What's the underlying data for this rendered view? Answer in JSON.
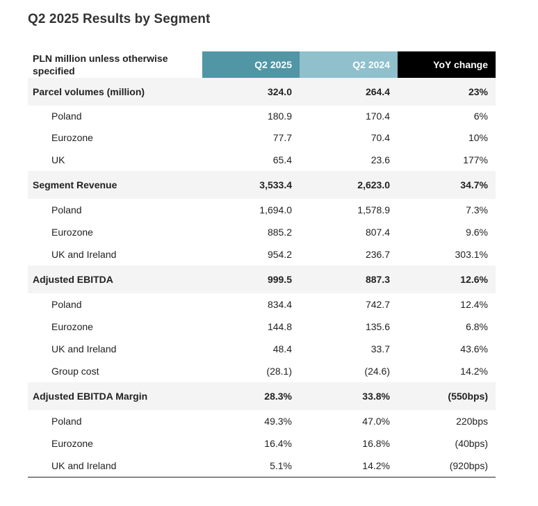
{
  "title": "Q2 2025 Results by Segment",
  "table": {
    "header": {
      "label": "PLN million unless otherwise specified",
      "q2_2025": "Q2 2025",
      "q2_2024": "Q2 2024",
      "yoy": "YoY change"
    },
    "colors": {
      "q2_2025_header": "#5096a5",
      "q2_2024_header": "#8fc0cc",
      "yoy_header": "#000000",
      "group_row_bg": "#f4f4f4"
    },
    "groups": [
      {
        "label": "Parcel volumes (million)",
        "q2_2025": "324.0",
        "q2_2024": "264.4",
        "yoy": "23%",
        "rows": [
          {
            "label": "Poland",
            "q2_2025": "180.9",
            "q2_2024": "170.4",
            "yoy": "6%"
          },
          {
            "label": "Eurozone",
            "q2_2025": "77.7",
            "q2_2024": "70.4",
            "yoy": "10%"
          },
          {
            "label": "UK",
            "q2_2025": "65.4",
            "q2_2024": "23.6",
            "yoy": "177%"
          }
        ]
      },
      {
        "label": "Segment Revenue",
        "q2_2025": "3,533.4",
        "q2_2024": "2,623.0",
        "yoy": "34.7%",
        "rows": [
          {
            "label": "Poland",
            "q2_2025": "1,694.0",
            "q2_2024": "1,578.9",
            "yoy": "7.3%"
          },
          {
            "label": "Eurozone",
            "q2_2025": "885.2",
            "q2_2024": "807.4",
            "yoy": "9.6%"
          },
          {
            "label": "UK and Ireland",
            "q2_2025": "954.2",
            "q2_2024": "236.7",
            "yoy": "303.1%"
          }
        ]
      },
      {
        "label": "Adjusted EBITDA",
        "q2_2025": "999.5",
        "q2_2024": "887.3",
        "yoy": "12.6%",
        "rows": [
          {
            "label": "Poland",
            "q2_2025": "834.4",
            "q2_2024": "742.7",
            "yoy": "12.4%"
          },
          {
            "label": "Eurozone",
            "q2_2025": "144.8",
            "q2_2024": "135.6",
            "yoy": "6.8%"
          },
          {
            "label": "UK and Ireland",
            "q2_2025": "48.4",
            "q2_2024": "33.7",
            "yoy": "43.6%"
          },
          {
            "label": "Group cost",
            "q2_2025": "(28.1)",
            "q2_2024": "(24.6)",
            "yoy": "14.2%"
          }
        ]
      },
      {
        "label": "Adjusted EBITDA Margin",
        "q2_2025": "28.3%",
        "q2_2024": "33.8%",
        "yoy": "(550bps)",
        "rows": [
          {
            "label": "Poland",
            "q2_2025": "49.3%",
            "q2_2024": "47.0%",
            "yoy": "220bps"
          },
          {
            "label": "Eurozone",
            "q2_2025": "16.4%",
            "q2_2024": "16.8%",
            "yoy": "(40bps)"
          },
          {
            "label": "UK and Ireland",
            "q2_2025": "5.1%",
            "q2_2024": "14.2%",
            "yoy": "(920bps)"
          }
        ]
      }
    ]
  }
}
